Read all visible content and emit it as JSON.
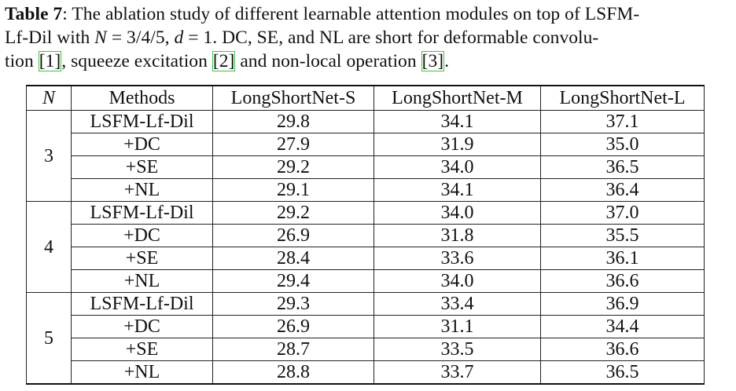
{
  "caption": {
    "label": "Table 7",
    "line1_text": ": The ablation study of different learnable attention modules on top of LSFM-",
    "line2_pre": "Lf-Dil with ",
    "line2_math_N": "N",
    "line2_eq1": " = 3/4/5, ",
    "line2_math_d": "d",
    "line2_eq2": " = 1. DC, SE, and NL are short for deformable convolu-",
    "line3_pre": "tion ",
    "ref1": "[1]",
    "line3_mid1": ", squeeze excitation ",
    "ref2": "[2]",
    "line3_mid2": " and non-local operation ",
    "ref3": "[3]",
    "line3_end": "."
  },
  "table": {
    "headers": [
      "N",
      "Methods",
      "LongShortNet-S",
      "LongShortNet-M",
      "LongShortNet-L"
    ],
    "groups": [
      {
        "n": "3",
        "rows": [
          {
            "method": "LSFM-Lf-Dil",
            "s": "29.8",
            "m": "34.1",
            "l": "37.1",
            "bold": [
              true,
              true,
              true
            ]
          },
          {
            "method": "+DC",
            "s": "27.9",
            "m": "31.9",
            "l": "35.0",
            "bold": [
              false,
              false,
              false
            ]
          },
          {
            "method": "+SE",
            "s": "29.2",
            "m": "34.0",
            "l": "36.5",
            "bold": [
              false,
              false,
              false
            ]
          },
          {
            "method": "+NL",
            "s": "29.1",
            "m": "34.1",
            "l": "36.4",
            "bold": [
              false,
              true,
              false
            ]
          }
        ]
      },
      {
        "n": "4",
        "rows": [
          {
            "method": "LSFM-Lf-Dil",
            "s": "29.2",
            "m": "34.0",
            "l": "37.0",
            "bold": [
              false,
              true,
              true
            ]
          },
          {
            "method": "+DC",
            "s": "26.9",
            "m": "31.8",
            "l": "35.5",
            "bold": [
              false,
              false,
              false
            ]
          },
          {
            "method": "+SE",
            "s": "28.4",
            "m": "33.6",
            "l": "36.1",
            "bold": [
              false,
              false,
              false
            ]
          },
          {
            "method": "+NL",
            "s": "29.4",
            "m": "34.0",
            "l": "36.6",
            "bold": [
              true,
              true,
              false
            ]
          }
        ]
      },
      {
        "n": "5",
        "rows": [
          {
            "method": "LSFM-Lf-Dil",
            "s": "29.3",
            "m": "33.4",
            "l": "36.9",
            "bold": [
              true,
              false,
              true
            ]
          },
          {
            "method": "+DC",
            "s": "26.9",
            "m": "31.1",
            "l": "34.4",
            "bold": [
              false,
              false,
              false
            ]
          },
          {
            "method": "+SE",
            "s": "28.7",
            "m": "33.5",
            "l": "36.6",
            "bold": [
              false,
              false,
              false
            ]
          },
          {
            "method": "+NL",
            "s": "28.8",
            "m": "33.7",
            "l": "36.5",
            "bold": [
              false,
              true,
              false
            ]
          }
        ]
      }
    ]
  }
}
